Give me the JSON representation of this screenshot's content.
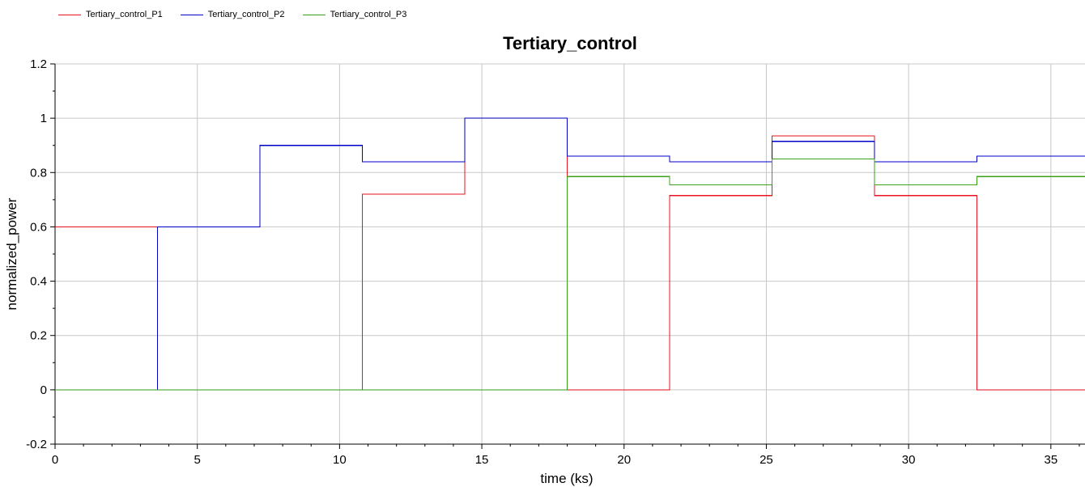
{
  "chart_data": {
    "type": "line",
    "title": "Tertiary_control",
    "xlabel": "time (ks)",
    "ylabel": "normalized_power",
    "xlim": [
      0,
      36.2
    ],
    "ylim": [
      -0.2,
      1.2
    ],
    "x_ticks": [
      0,
      5,
      10,
      15,
      20,
      25,
      30,
      35
    ],
    "y_ticks": [
      -0.2,
      0,
      0.2,
      0.4,
      0.6,
      0.8,
      1,
      1.2
    ],
    "y_tick_labels": [
      "-0.2",
      "0",
      "0.2",
      "0.4",
      "0.6",
      "0.8",
      "1",
      "1.2"
    ],
    "grid": true,
    "legend_position": "top-left",
    "series": [
      {
        "name": "Tertiary_control_P1",
        "color": "#e8141f",
        "step": true,
        "x": [
          0,
          3.6,
          10.8,
          14.4,
          18.0,
          21.6,
          25.2,
          28.8,
          32.4,
          36.2
        ],
        "y": [
          0.6,
          0,
          0.72,
          1.0,
          0,
          0.715,
          0.935,
          0.715,
          0,
          0
        ]
      },
      {
        "name": "Tertiary_control_P2",
        "color": "#0000c8",
        "step": true,
        "x": [
          0,
          3.6,
          7.2,
          10.8,
          14.4,
          18.0,
          21.6,
          25.2,
          28.8,
          32.4,
          36.2
        ],
        "y": [
          0,
          0.6,
          0.9,
          0.84,
          1.0,
          0.86,
          0.84,
          0.915,
          0.84,
          0.86,
          0.86
        ]
      },
      {
        "name": "Tertiary_control_P3",
        "color": "#3ca01e",
        "step": true,
        "x": [
          0,
          18.0,
          21.6,
          25.2,
          28.8,
          32.4,
          36.2
        ],
        "y": [
          0,
          0.785,
          0.755,
          0.85,
          0.755,
          0.785,
          0.785
        ]
      }
    ]
  }
}
